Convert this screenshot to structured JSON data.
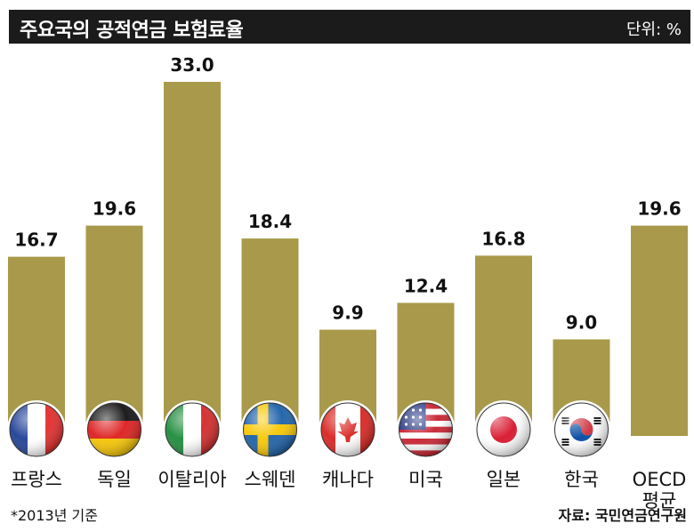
{
  "header": {
    "title": "주요국의 공적연금 보험료율",
    "unit": "단위: %"
  },
  "footer": {
    "note": "*2013년 기준",
    "source": "자료: 국민연금연구원"
  },
  "colors": {
    "bar": "#a89a4a",
    "title_bg": "#1b1b1b"
  },
  "icons": [
    "france-flag-icon",
    "germany-flag-icon",
    "italy-flag-icon",
    "sweden-flag-icon",
    "canada-flag-icon",
    "usa-flag-icon",
    "japan-flag-icon",
    "korea-flag-icon"
  ],
  "chart_data": {
    "type": "bar",
    "title": "주요국의 공적연금 보험료율",
    "categories": [
      "프랑스",
      "독일",
      "이탈리아",
      "스웨덴",
      "캐나다",
      "미국",
      "일본",
      "한국",
      "OECD 평균"
    ],
    "values": [
      16.7,
      19.6,
      33.0,
      18.4,
      9.9,
      12.4,
      16.8,
      9.0,
      19.6
    ],
    "value_labels": [
      "16.7",
      "19.6",
      "33.0",
      "18.4",
      "9.9",
      "12.4",
      "16.8",
      "9.0",
      "19.6"
    ],
    "label_lines": [
      [
        "프랑스"
      ],
      [
        "독일"
      ],
      [
        "이탈리아"
      ],
      [
        "스웨덴"
      ],
      [
        "캐나다"
      ],
      [
        "미국"
      ],
      [
        "일본"
      ],
      [
        "한국"
      ],
      [
        "OECD",
        "평균"
      ]
    ],
    "ylabel": "단위: %",
    "ylim": [
      0,
      33
    ],
    "grid": false,
    "legend": "none"
  }
}
